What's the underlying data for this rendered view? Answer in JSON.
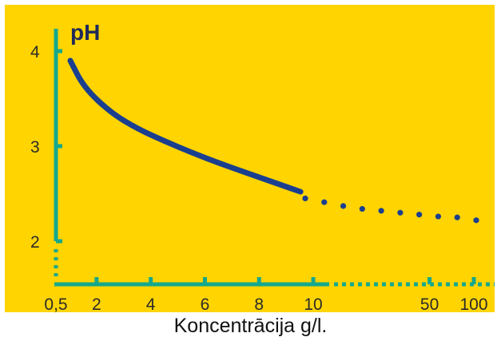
{
  "chart_data": {
    "type": "line",
    "title": "",
    "ylabel": "pH",
    "xlabel": "Koncentrācija g/l.",
    "y_ticks": [
      "2",
      "3",
      "4"
    ],
    "x_ticks": [
      "0,5",
      "2",
      "4",
      "6",
      "8",
      "10",
      "50",
      "100"
    ],
    "series": [
      {
        "style": "solid",
        "x": [
          0.5,
          1,
          2,
          3,
          4,
          5,
          6,
          7,
          8,
          9
        ],
        "y": [
          3.9,
          3.62,
          3.35,
          3.18,
          3.05,
          2.93,
          2.82,
          2.72,
          2.62,
          2.52
        ]
      },
      {
        "style": "dotted",
        "x": [
          10,
          20,
          30,
          40,
          50,
          60,
          70,
          80,
          90,
          100
        ],
        "y": [
          2.45,
          2.41,
          2.37,
          2.34,
          2.32,
          2.3,
          2.28,
          2.26,
          2.25,
          2.22
        ]
      }
    ],
    "ylim": [
      1.6,
      4.2
    ],
    "colors": {
      "background": "#FFD400",
      "axis": "#15A88C",
      "line": "#1B3F8F"
    },
    "grid": false,
    "legend": "none"
  }
}
